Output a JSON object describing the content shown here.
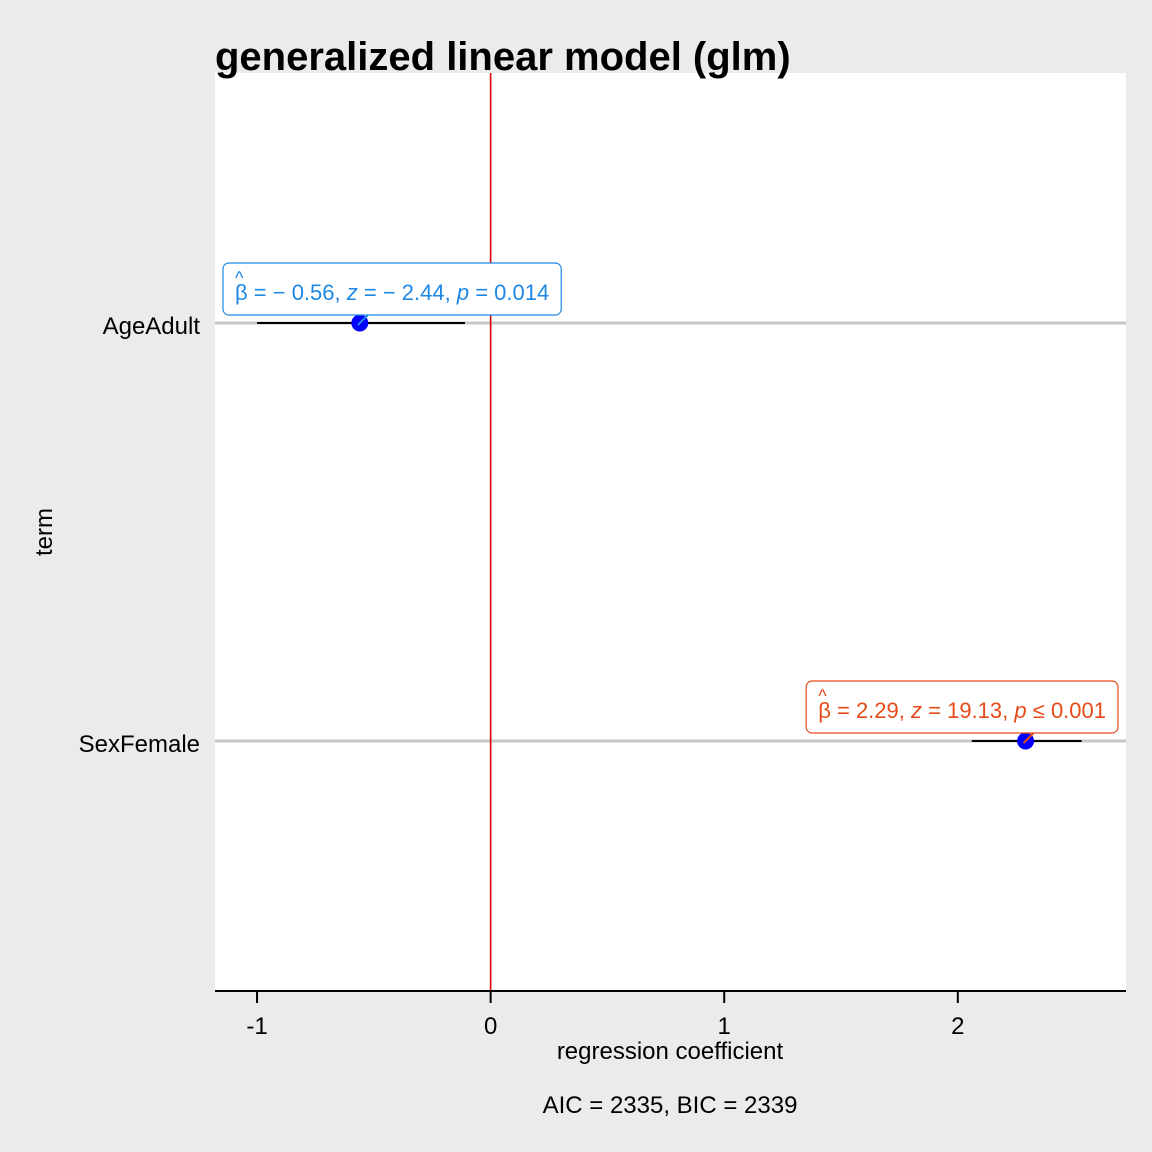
{
  "chart_data": {
    "type": "scatter",
    "title": "generalized linear model (glm)",
    "xlabel": "regression coefficient",
    "ylabel": "term",
    "caption": "AIC = 2335, BIC = 2339",
    "xlim": [
      -1.18,
      2.72
    ],
    "x_ticks": [
      -1,
      0,
      1,
      2
    ],
    "x_tick_labels": [
      "-1",
      "0",
      "1",
      "2"
    ],
    "reference_line": 0,
    "grid": "horizontal major only",
    "terms": [
      {
        "name": "AgeAdult",
        "estimate": -0.56,
        "conf_low": -1.0,
        "conf_high": -0.11,
        "label": {
          "beta": "-0.56",
          "z": "-2.44",
          "p_op": "=",
          "p": "0.014"
        },
        "color": "#1E88E5"
      },
      {
        "name": "SexFemale",
        "estimate": 2.29,
        "conf_low": 2.06,
        "conf_high": 2.53,
        "label": {
          "beta": "2.29",
          "z": "19.13",
          "p_op": "≤",
          "p": "0.001"
        },
        "color": "#E64A19"
      }
    ],
    "colors": {
      "point": "#0000FF",
      "reference_line": "#E00000",
      "panel_background": "#FFFFFF",
      "plot_background": "#EBEBEB",
      "grid": "#C8C8C8"
    }
  }
}
